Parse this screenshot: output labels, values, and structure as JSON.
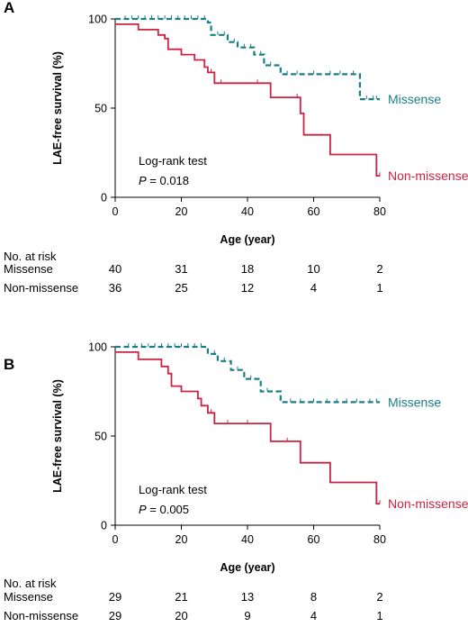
{
  "chart_data": [
    {
      "panel": "A",
      "type": "line",
      "ylabel": "LAE-free survival (%)",
      "xlabel": "Age (year)",
      "xlim": [
        0,
        80
      ],
      "ylim": [
        0,
        100
      ],
      "xticks": [
        "0",
        "20",
        "40",
        "60",
        "80"
      ],
      "yticks": [
        "0",
        "50",
        "100"
      ],
      "test": {
        "line1": "Log-rank test",
        "p_symbol": "P",
        "p_value": " = 0.018"
      },
      "colors": {
        "Missense": "#1a7f86",
        "Non-missense": "#cc2244"
      },
      "series": [
        {
          "name": "Missense",
          "style": "dashed",
          "steps": [
            [
              0,
              100
            ],
            [
              28,
              100
            ],
            [
              28,
              98
            ],
            [
              29,
              98
            ],
            [
              29,
              91
            ],
            [
              34,
              91
            ],
            [
              34,
              87
            ],
            [
              37,
              87
            ],
            [
              37,
              84
            ],
            [
              42,
              84
            ],
            [
              42,
              80
            ],
            [
              45,
              80
            ],
            [
              45,
              74
            ],
            [
              50,
              74
            ],
            [
              50,
              69
            ],
            [
              74,
              69
            ],
            [
              74,
              55
            ],
            [
              80,
              55
            ]
          ],
          "censor_x": [
            3,
            5,
            7,
            9,
            11,
            13,
            15,
            17,
            19,
            21,
            23,
            25,
            27,
            31,
            33,
            36,
            39,
            41,
            44,
            47,
            52,
            55,
            60,
            65,
            68,
            72,
            76,
            78,
            79
          ]
        },
        {
          "name": "Non-missense",
          "style": "solid",
          "steps": [
            [
              0,
              97
            ],
            [
              7,
              97
            ],
            [
              7,
              94
            ],
            [
              13,
              94
            ],
            [
              13,
              91
            ],
            [
              15,
              91
            ],
            [
              15,
              89
            ],
            [
              16,
              89
            ],
            [
              16,
              83
            ],
            [
              20,
              83
            ],
            [
              20,
              80
            ],
            [
              24,
              80
            ],
            [
              24,
              77
            ],
            [
              27,
              77
            ],
            [
              27,
              73
            ],
            [
              28,
              73
            ],
            [
              28,
              70
            ],
            [
              30,
              70
            ],
            [
              30,
              64
            ],
            [
              47,
              64
            ],
            [
              47,
              56
            ],
            [
              56,
              56
            ],
            [
              56,
              47
            ],
            [
              57,
              47
            ],
            [
              57,
              35
            ],
            [
              65,
              35
            ],
            [
              65,
              24
            ],
            [
              79,
              24
            ],
            [
              79,
              12
            ],
            [
              80,
              12
            ]
          ],
          "censor_x": [
            29,
            32,
            43,
            55,
            80
          ]
        }
      ],
      "at_risk": {
        "header": "No. at risk",
        "times": [
          0,
          20,
          40,
          60,
          80
        ],
        "rows": [
          {
            "label": "Missense",
            "values": [
              "40",
              "31",
              "18",
              "10",
              "2"
            ]
          },
          {
            "label": "Non-missense",
            "values": [
              "36",
              "25",
              "12",
              "4",
              "1"
            ]
          }
        ]
      }
    },
    {
      "panel": "B",
      "type": "line",
      "ylabel": "LAE-free survival (%)",
      "xlabel": "Age (year)",
      "xlim": [
        0,
        80
      ],
      "ylim": [
        0,
        100
      ],
      "xticks": [
        "0",
        "20",
        "40",
        "60",
        "80"
      ],
      "yticks": [
        "0",
        "50",
        "100"
      ],
      "test": {
        "line1": "Log-rank test",
        "p_symbol": "P",
        "p_value": " = 0.005"
      },
      "colors": {
        "Missense": "#1a7f86",
        "Non-missense": "#cc2244"
      },
      "series": [
        {
          "name": "Missense",
          "style": "dashed",
          "steps": [
            [
              0,
              100
            ],
            [
              28,
              100
            ],
            [
              28,
              96
            ],
            [
              31,
              96
            ],
            [
              31,
              92
            ],
            [
              35,
              92
            ],
            [
              35,
              87
            ],
            [
              39,
              87
            ],
            [
              39,
              82
            ],
            [
              44,
              82
            ],
            [
              44,
              75
            ],
            [
              50,
              75
            ],
            [
              50,
              69
            ],
            [
              80,
              69
            ]
          ],
          "censor_x": [
            4,
            6,
            8,
            10,
            12,
            14,
            16,
            18,
            20,
            22,
            24,
            26,
            30,
            33,
            37,
            41,
            46,
            53,
            56,
            60,
            64,
            67,
            70,
            73,
            77,
            79
          ]
        },
        {
          "name": "Non-missense",
          "style": "solid",
          "steps": [
            [
              0,
              97
            ],
            [
              7,
              97
            ],
            [
              7,
              93
            ],
            [
              14,
              93
            ],
            [
              14,
              89
            ],
            [
              16,
              89
            ],
            [
              16,
              85
            ],
            [
              17,
              85
            ],
            [
              17,
              78
            ],
            [
              20,
              78
            ],
            [
              20,
              75
            ],
            [
              25,
              75
            ],
            [
              25,
              71
            ],
            [
              26,
              71
            ],
            [
              26,
              67
            ],
            [
              28,
              67
            ],
            [
              28,
              63
            ],
            [
              30,
              63
            ],
            [
              30,
              57
            ],
            [
              47,
              57
            ],
            [
              47,
              47
            ],
            [
              56,
              47
            ],
            [
              56,
              35
            ],
            [
              65,
              35
            ],
            [
              65,
              24
            ],
            [
              79,
              24
            ],
            [
              79,
              12
            ],
            [
              80,
              12
            ]
          ],
          "censor_x": [
            29,
            34,
            40,
            52,
            80
          ]
        }
      ],
      "at_risk": {
        "header": "No. at risk",
        "times": [
          0,
          20,
          40,
          60,
          80
        ],
        "rows": [
          {
            "label": "Missense",
            "values": [
              "29",
              "21",
              "13",
              "8",
              "2"
            ]
          },
          {
            "label": "Non-missense",
            "values": [
              "29",
              "20",
              "9",
              "4",
              "1"
            ]
          }
        ]
      }
    }
  ]
}
